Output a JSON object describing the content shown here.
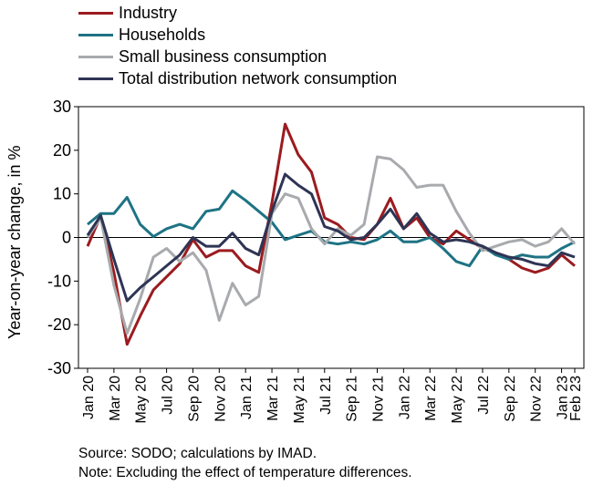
{
  "chart_data": {
    "type": "line",
    "ylabel": "Year-on-year change, in %",
    "ylim": [
      -30,
      30
    ],
    "yticks": [
      -30,
      -20,
      -10,
      0,
      10,
      20,
      30
    ],
    "x": [
      "Jan 20",
      "Feb 20",
      "Mar 20",
      "Apr 20",
      "May 20",
      "Jun 20",
      "Jul 20",
      "Aug 20",
      "Sep 20",
      "Oct 20",
      "Nov 20",
      "Dec 20",
      "Jan 21",
      "Feb 21",
      "Mar 21",
      "Apr 21",
      "May 21",
      "Jun 21",
      "Jul 21",
      "Aug 21",
      "Sep 21",
      "Oct 21",
      "Nov 21",
      "Dec 21",
      "Jan 22",
      "Feb 22",
      "Mar 22",
      "Apr 22",
      "May 22",
      "Jun 22",
      "Jul 22",
      "Aug 22",
      "Sep 22",
      "Oct 22",
      "Nov 22",
      "Dec 22",
      "Jan 23",
      "Feb 23"
    ],
    "xtick_labels": [
      "Jan 20",
      "Mar 20",
      "May 20",
      "Jul 20",
      "Sep 20",
      "Nov 20",
      "Jan 21",
      "Mar 21",
      "May 21",
      "Jul 21",
      "Sep 21",
      "Nov 21",
      "Jan 22",
      "Mar 22",
      "May 22",
      "Jul 22",
      "Sep 22",
      "Nov 22",
      "Jan 23",
      "Feb 23"
    ],
    "legend_position": "top-left",
    "grid": false,
    "series": [
      {
        "name": "Industry",
        "color": "#9b1b1f",
        "values": [
          -2,
          5,
          -8,
          -24.5,
          -18,
          -12,
          -9,
          -6,
          -0.5,
          -4.5,
          -3,
          -3,
          -6.5,
          -8,
          8,
          26,
          19,
          15,
          4.5,
          3,
          0,
          -0.5,
          3,
          9,
          2,
          4.5,
          0,
          -1.5,
          1.5,
          -0.5,
          -2.5,
          -3.5,
          -5,
          -7,
          -8,
          -7,
          -4,
          -6.5
        ]
      },
      {
        "name": "Households",
        "color": "#1e7384",
        "values": [
          3,
          5.5,
          5.5,
          9.2,
          3,
          0.2,
          2,
          3,
          2,
          6,
          6.5,
          10.7,
          8.5,
          6,
          3.5,
          -0.5,
          0.5,
          1.5,
          -1,
          -1.5,
          -1,
          -1.5,
          -0.5,
          1.5,
          -1,
          -1,
          0,
          -2.5,
          -5.5,
          -6.5,
          -2,
          -4,
          -5,
          -4,
          -4.5,
          -4.5,
          -2.5,
          -1
        ]
      },
      {
        "name": "Small business consumption",
        "color": "#a8aaad",
        "values": [
          0,
          4.5,
          -11,
          -22,
          -14,
          -4.5,
          -2.5,
          -5.5,
          -3.5,
          -7.5,
          -19,
          -10.5,
          -15.5,
          -13.5,
          5.5,
          10,
          9,
          2,
          -1.5,
          2,
          0.5,
          3,
          18.5,
          18,
          15.5,
          11.5,
          12,
          12,
          6,
          1,
          -3,
          -2,
          -1,
          -0.5,
          -2,
          -1,
          2,
          -1.5
        ]
      },
      {
        "name": "Total distribution network consumption",
        "color": "#2e3454",
        "values": [
          0.5,
          5,
          -5,
          -14.5,
          -11.5,
          -9,
          -6.5,
          -4,
          0,
          -2,
          -2,
          1,
          -2.5,
          -4,
          6,
          14.5,
          12,
          10,
          2.5,
          1.5,
          -0.5,
          0,
          3,
          6.5,
          2,
          5.5,
          1,
          -1,
          -0.5,
          -1,
          -2,
          -3.5,
          -4.5,
          -5,
          -6,
          -6.5,
          -3.5,
          -4.5
        ]
      }
    ]
  },
  "footer": {
    "source": "Source: SODO; calculations by IMAD.",
    "note": "Note: Excluding the effect of temperature differences."
  }
}
